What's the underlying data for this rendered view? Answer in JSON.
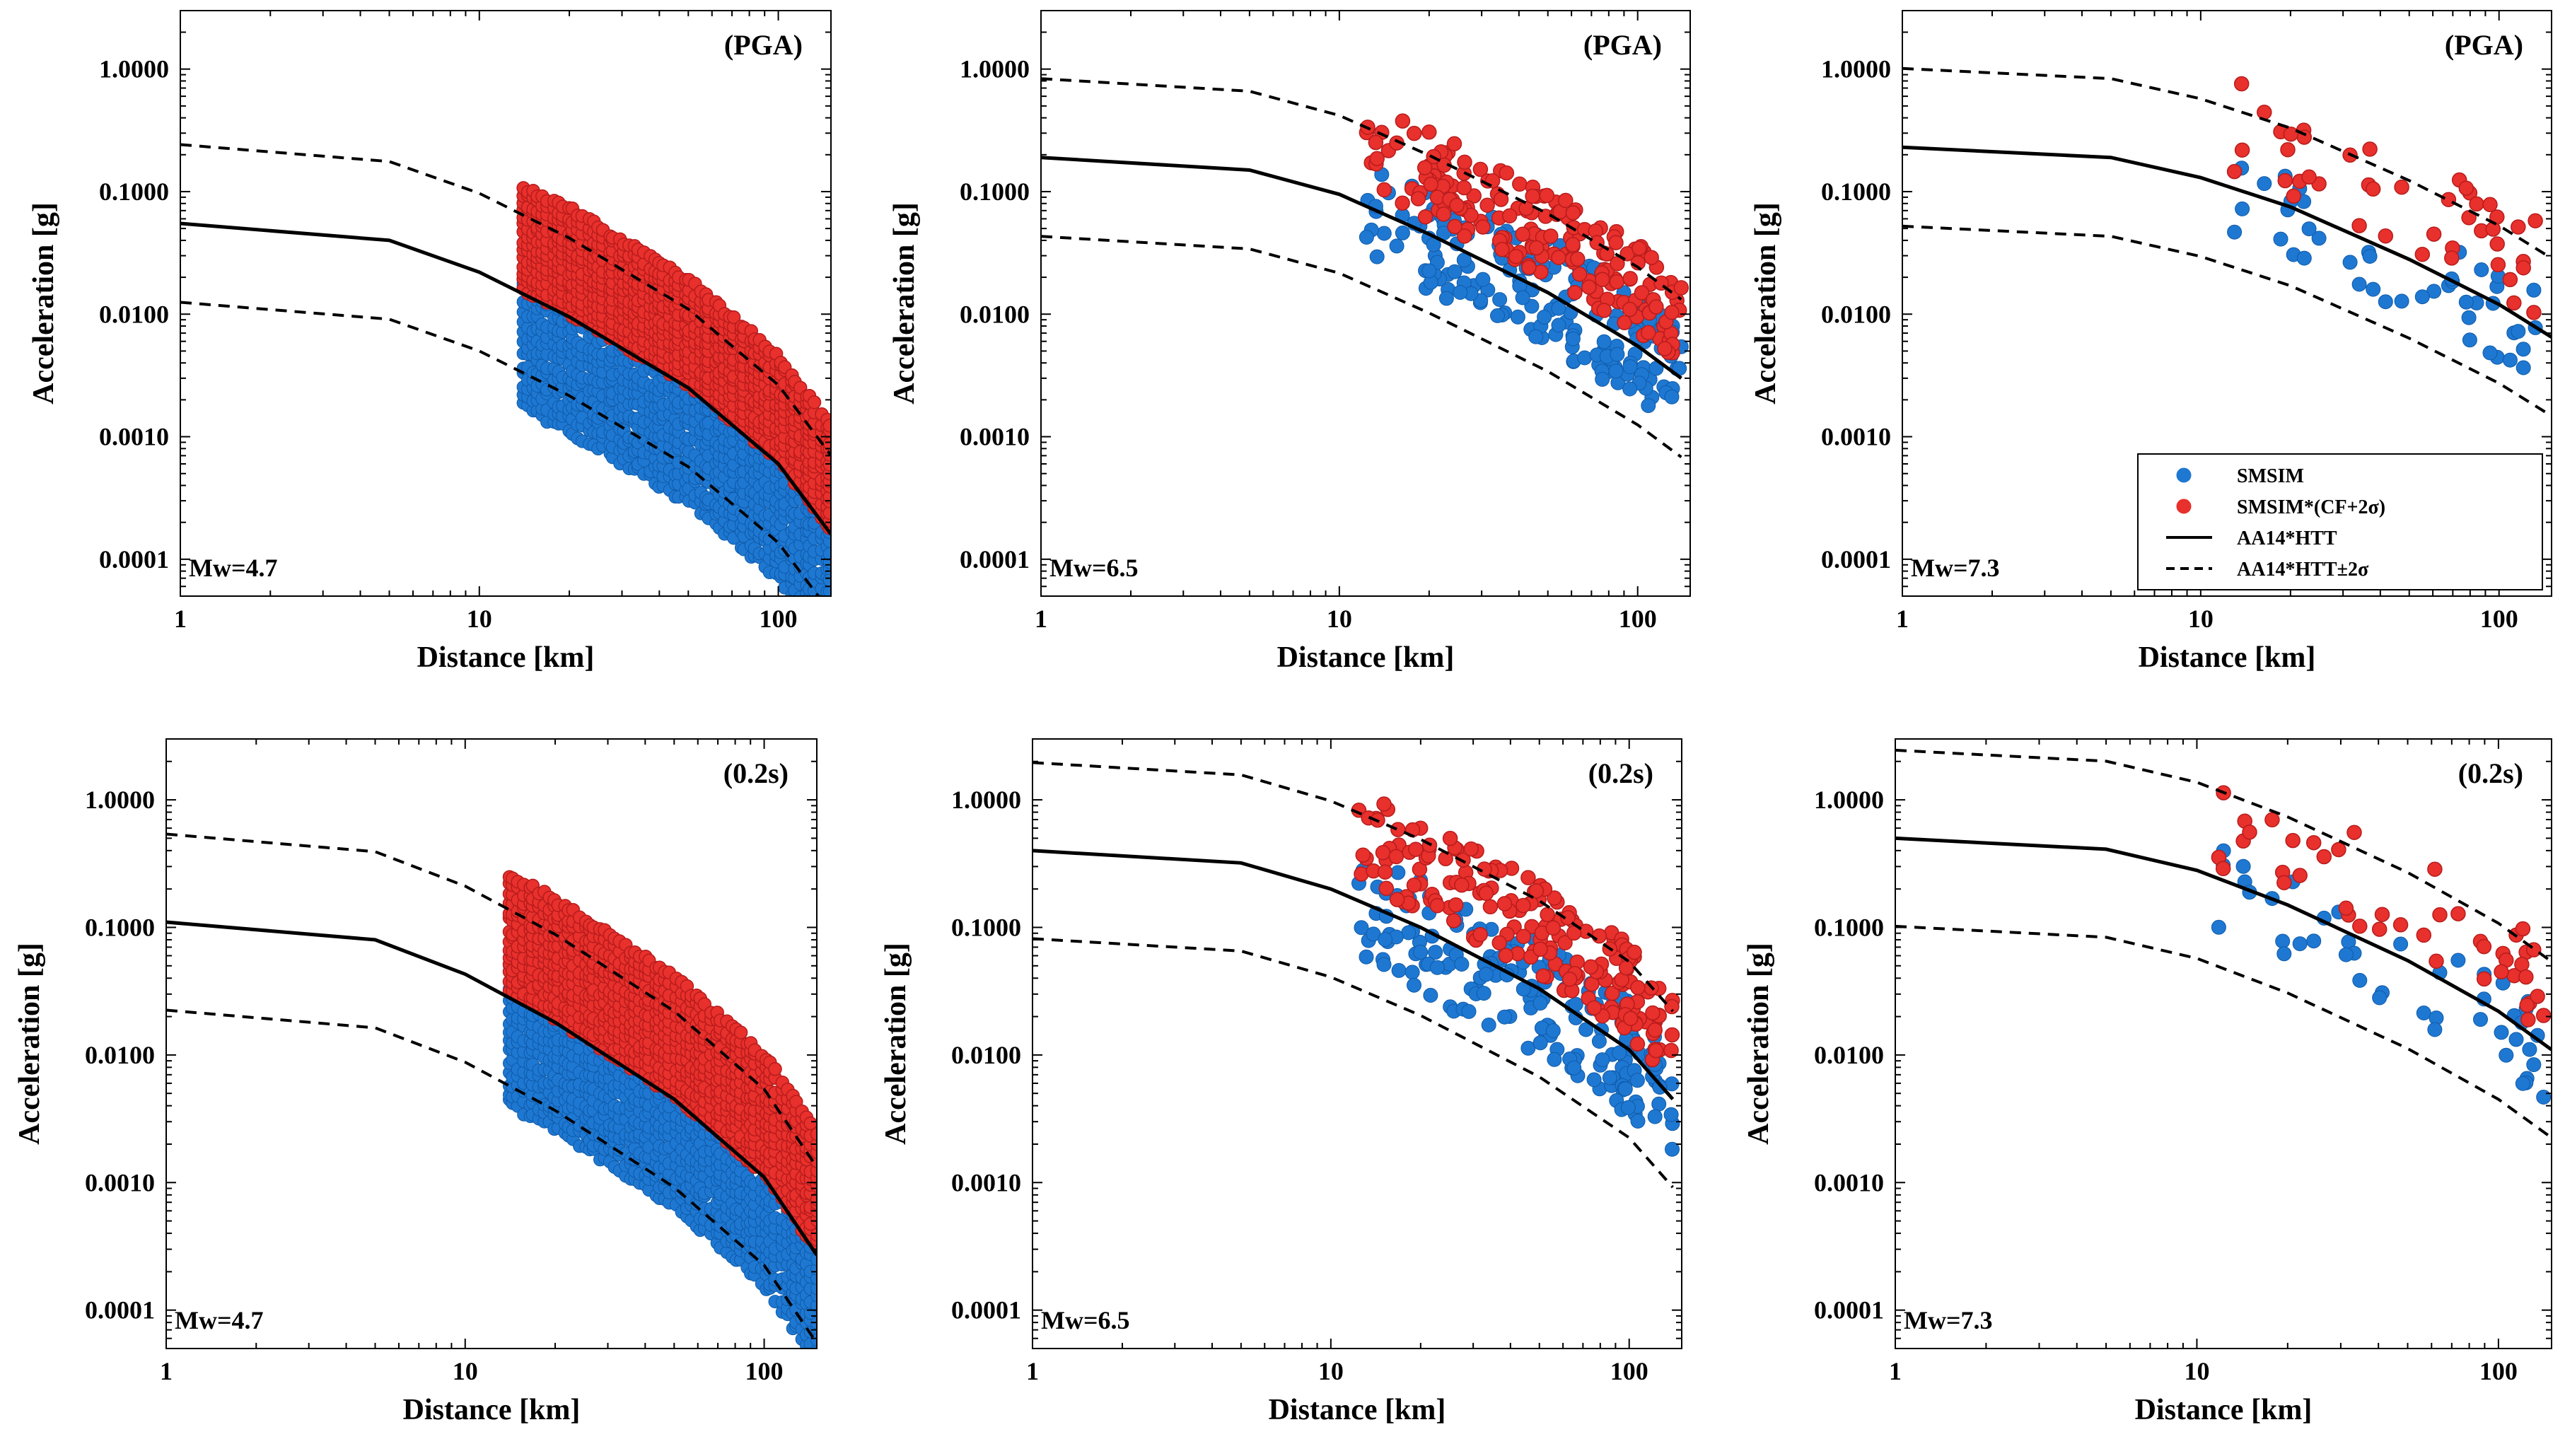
{
  "figure": {
    "legend": {
      "items": [
        {
          "label": "SMSIM",
          "kind": "dot",
          "color": "#1e78d2"
        },
        {
          "label": "SMSIM*(CF+2σ)",
          "kind": "dot",
          "color": "#e8302c"
        },
        {
          "label": "AA14*HTT",
          "kind": "solid"
        },
        {
          "label": "AA14*HTT±2σ",
          "kind": "dashed"
        }
      ]
    },
    "colors": {
      "smsim": "#1e78d2",
      "smsim_edge": "#0f5aa8",
      "cf": "#e8302c",
      "cf_edge": "#b71c1c",
      "line": "#000000"
    }
  },
  "chart_data": [
    {
      "type": "scatter",
      "panel": "top-left",
      "tag": "(PGA)",
      "mw_label": "Mw=4.7",
      "xlabel": "Distance [km]",
      "ylabel": "Acceleration [g]",
      "xscale": "log",
      "yscale": "log",
      "xlim": [
        1,
        150
      ],
      "ylim": [
        5e-05,
        3
      ],
      "xticks": [
        1,
        10,
        100
      ],
      "xticklabels": [
        "1",
        "10",
        "100"
      ],
      "yticks": [
        0.0001,
        0.001,
        0.01,
        0.1,
        1
      ],
      "yticklabels": [
        "0.0001",
        "0.0010",
        "0.0100",
        "0.1000",
        "1.0000"
      ],
      "median_line": {
        "x": [
          1,
          5,
          10,
          20,
          50,
          100,
          150
        ],
        "y": [
          0.055,
          0.04,
          0.022,
          0.0095,
          0.0025,
          0.0006,
          0.00016
        ]
      },
      "sigma_factor": 4.4,
      "scatter": {
        "distance_range": [
          14,
          150
        ],
        "smsim_ratio": [
          0.12,
          1.6
        ],
        "cf_ratio": [
          1.1,
          7.5
        ],
        "note": "dense vertical columns of points at many distances"
      }
    },
    {
      "type": "scatter",
      "panel": "top-middle",
      "tag": "(PGA)",
      "mw_label": "Mw=6.5",
      "xlabel": "Distance [km]",
      "ylabel": "Acceleration [g]",
      "xscale": "log",
      "yscale": "log",
      "xlim": [
        1,
        150
      ],
      "ylim": [
        5e-05,
        3
      ],
      "xticks": [
        1,
        10,
        100
      ],
      "xticklabels": [
        "1",
        "10",
        "100"
      ],
      "yticks": [
        0.0001,
        0.001,
        0.01,
        0.1,
        1
      ],
      "yticklabels": [
        "0.0001",
        "0.0010",
        "0.0100",
        "0.1000",
        "1.0000"
      ],
      "median_line": {
        "x": [
          1,
          5,
          10,
          20,
          50,
          100,
          140
        ],
        "y": [
          0.19,
          0.15,
          0.095,
          0.045,
          0.015,
          0.0055,
          0.003
        ]
      },
      "sigma_factor": 4.4,
      "scatter": {
        "distance_range": [
          12,
          140
        ],
        "smsim_ratio": [
          0.35,
          2.8
        ],
        "cf_ratio": [
          1.3,
          7.0
        ],
        "note": "sparse cloud of about 200 points"
      }
    },
    {
      "type": "scatter",
      "panel": "top-right",
      "tag": "(PGA)",
      "mw_label": "Mw=7.3",
      "xlabel": "Distance [km]",
      "ylabel": "Acceleration [g]",
      "xscale": "log",
      "yscale": "log",
      "xlim": [
        1,
        150
      ],
      "ylim": [
        5e-05,
        3
      ],
      "xticks": [
        1,
        10,
        100
      ],
      "xticklabels": [
        "1",
        "10",
        "100"
      ],
      "yticks": [
        0.0001,
        0.001,
        0.01,
        0.1,
        1
      ],
      "yticklabels": [
        "0.0001",
        "0.0010",
        "0.0100",
        "0.1000",
        "1.0000"
      ],
      "median_line": {
        "x": [
          1,
          5,
          10,
          20,
          50,
          100,
          150
        ],
        "y": [
          0.23,
          0.19,
          0.13,
          0.075,
          0.028,
          0.012,
          0.0065
        ]
      },
      "sigma_factor": 4.4,
      "scatter": {
        "distance_range": [
          11,
          145
        ],
        "smsim_ratio": [
          0.35,
          2.0
        ],
        "cf_ratio": [
          1.2,
          7.5
        ],
        "note": "sparse cloud of about 45 points"
      },
      "legend": true
    },
    {
      "type": "scatter",
      "panel": "bottom-left",
      "tag": "(0.2s)",
      "mw_label": "Mw=4.7",
      "xlabel": "Distance [km]",
      "ylabel": "Acceleration [g]",
      "xscale": "log",
      "yscale": "log",
      "xlim": [
        1,
        150
      ],
      "ylim": [
        5e-05,
        3
      ],
      "xticks": [
        1,
        10,
        100
      ],
      "xticklabels": [
        "1",
        "10",
        "100"
      ],
      "yticks": [
        0.0001,
        0.001,
        0.01,
        0.1,
        1
      ],
      "yticklabels": [
        "0.0001",
        "0.0010",
        "0.0100",
        "0.1000",
        "1.0000"
      ],
      "median_line": {
        "x": [
          1,
          5,
          10,
          20,
          50,
          100,
          150
        ],
        "y": [
          0.11,
          0.08,
          0.043,
          0.018,
          0.0045,
          0.0011,
          0.00027
        ]
      },
      "sigma_factor": 4.9,
      "scatter": {
        "distance_range": [
          14,
          150
        ],
        "smsim_ratio": [
          0.15,
          1.7
        ],
        "cf_ratio": [
          1.1,
          9.0
        ],
        "note": "dense vertical columns of points at many distances"
      }
    },
    {
      "type": "scatter",
      "panel": "bottom-middle",
      "tag": "(0.2s)",
      "mw_label": "Mw=6.5",
      "xlabel": "Distance [km]",
      "ylabel": "Acceleration [g]",
      "xscale": "log",
      "yscale": "log",
      "xlim": [
        1,
        150
      ],
      "ylim": [
        5e-05,
        3
      ],
      "xticks": [
        1,
        10,
        100
      ],
      "xticklabels": [
        "1",
        "10",
        "100"
      ],
      "yticks": [
        0.0001,
        0.001,
        0.01,
        0.1,
        1
      ],
      "yticklabels": [
        "0.0001",
        "0.0010",
        "0.0100",
        "0.1000",
        "1.0000"
      ],
      "median_line": {
        "x": [
          1,
          5,
          10,
          20,
          50,
          100,
          140
        ],
        "y": [
          0.4,
          0.32,
          0.2,
          0.1,
          0.033,
          0.011,
          0.0045
        ]
      },
      "sigma_factor": 4.9,
      "scatter": {
        "distance_range": [
          12,
          140
        ],
        "smsim_ratio": [
          0.3,
          2.5
        ],
        "cf_ratio": [
          1.3,
          7.0
        ],
        "note": "sparse cloud of about 200 points"
      }
    },
    {
      "type": "scatter",
      "panel": "bottom-right",
      "tag": "(0.2s)",
      "mw_label": "Mw=7.3",
      "xlabel": "Distance [km]",
      "ylabel": "Acceleration [g]",
      "xscale": "log",
      "yscale": "log",
      "xlim": [
        1,
        150
      ],
      "ylim": [
        5e-05,
        3
      ],
      "xticks": [
        1,
        10,
        100
      ],
      "xticklabels": [
        "1",
        "10",
        "100"
      ],
      "yticks": [
        0.0001,
        0.001,
        0.01,
        0.1,
        1
      ],
      "yticklabels": [
        "0.0001",
        "0.0010",
        "0.0100",
        "0.1000",
        "1.0000"
      ],
      "median_line": {
        "x": [
          1,
          5,
          10,
          20,
          50,
          100,
          150
        ],
        "y": [
          0.5,
          0.41,
          0.28,
          0.15,
          0.055,
          0.022,
          0.011
        ]
      },
      "sigma_factor": 4.9,
      "scatter": {
        "distance_range": [
          11,
          145
        ],
        "smsim_ratio": [
          0.35,
          2.0
        ],
        "cf_ratio": [
          1.2,
          7.5
        ],
        "note": "sparse cloud of about 45 points"
      }
    }
  ]
}
